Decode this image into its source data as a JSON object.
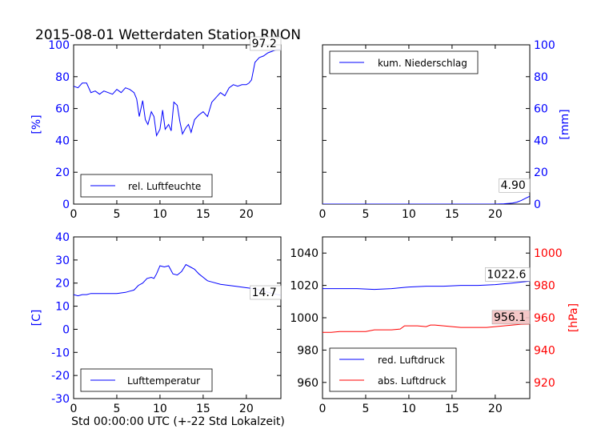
{
  "title": "2015-08-01 Wetterdaten Station RNON",
  "colors": {
    "blue": "#0000ff",
    "red": "#ff0000",
    "black": "#000000",
    "highlight": "#f4c2c2"
  },
  "chart_data": [
    {
      "id": "humidity",
      "type": "line",
      "ylabel": "[%]",
      "xlim": [
        0,
        24
      ],
      "ylim": [
        0,
        100
      ],
      "xticks": [
        0,
        5,
        10,
        15,
        20
      ],
      "yticks": [
        0,
        20,
        40,
        60,
        80,
        100
      ],
      "y_axis_side": "left",
      "legend_placement": "lower-left",
      "last_value_label": "97.2",
      "series": [
        {
          "name": "rel. Luftfeuchte",
          "color": "#0000ff",
          "x": [
            0,
            0.5,
            1,
            1.5,
            2,
            2.5,
            3,
            3.5,
            4,
            4.5,
            5,
            5.5,
            6,
            6.5,
            7,
            7.3,
            7.6,
            8,
            8.3,
            8.6,
            9,
            9.3,
            9.6,
            10,
            10.3,
            10.6,
            11,
            11.3,
            11.6,
            12,
            12.3,
            12.6,
            13,
            13.3,
            13.6,
            14,
            14.5,
            15,
            15.5,
            16,
            16.5,
            17,
            17.5,
            18,
            18.5,
            19,
            19.5,
            20,
            20.3,
            20.6,
            21,
            21.5,
            22,
            22.5,
            23,
            23.5,
            24
          ],
          "y": [
            74,
            73,
            76,
            76,
            70,
            71,
            69,
            71,
            70,
            69,
            72,
            70,
            73,
            72,
            70,
            66,
            55,
            65,
            53,
            50,
            58,
            55,
            43,
            47,
            59,
            47,
            50,
            46,
            64,
            62,
            52,
            44,
            48,
            50,
            45,
            53,
            56,
            58,
            55,
            64,
            67,
            70,
            68,
            73,
            75,
            74,
            75,
            75,
            76,
            78,
            89,
            92,
            93,
            95,
            96,
            97,
            97.2
          ]
        }
      ]
    },
    {
      "id": "precipitation",
      "type": "line",
      "ylabel": "[mm]",
      "xlim": [
        0,
        24
      ],
      "ylim": [
        0,
        100
      ],
      "xticks": [
        0,
        5,
        10,
        15,
        20
      ],
      "yticks": [
        0,
        20,
        40,
        60,
        80,
        100
      ],
      "y_axis_side": "right",
      "legend_placement": "upper-left",
      "last_value_label": "4.90",
      "series": [
        {
          "name": "kum. Niederschlag",
          "color": "#0000ff",
          "x": [
            0,
            20,
            21,
            22,
            22.5,
            23,
            23.5,
            24
          ],
          "y": [
            0,
            0,
            0.2,
            0.6,
            1.2,
            2.2,
            3.6,
            4.9
          ]
        }
      ]
    },
    {
      "id": "temperature",
      "type": "line",
      "ylabel": "[C]",
      "xlabel": "Std 00:00:00 UTC (+-22 Std Lokalzeit)",
      "xlim": [
        0,
        24
      ],
      "ylim": [
        -30,
        40
      ],
      "xticks": [
        0,
        5,
        10,
        15,
        20
      ],
      "yticks": [
        -30,
        -20,
        -10,
        0,
        10,
        20,
        30,
        40
      ],
      "y_axis_side": "left",
      "legend_placement": "lower-left",
      "last_value_label": "14.7",
      "series": [
        {
          "name": "Lufttemperatur",
          "color": "#0000ff",
          "x": [
            0,
            0.5,
            1,
            1.5,
            2,
            3,
            4,
            5,
            6,
            6.5,
            7,
            7.5,
            8,
            8.5,
            9,
            9.3,
            9.6,
            10,
            10.5,
            11,
            11.5,
            12,
            12.5,
            13,
            13.5,
            14,
            14.5,
            15,
            15.5,
            16,
            17,
            18,
            19,
            20,
            21,
            22,
            23,
            24
          ],
          "y": [
            15,
            14.5,
            15,
            15,
            15.5,
            15.5,
            15.5,
            15.5,
            16,
            16.5,
            17,
            19,
            20,
            22,
            22.5,
            22,
            24,
            27.5,
            27,
            27.5,
            24,
            23.5,
            25,
            28,
            27,
            26,
            24,
            22.5,
            21,
            20.5,
            19.5,
            19,
            18.5,
            18,
            17.5,
            16.5,
            15.5,
            14.7
          ]
        }
      ]
    },
    {
      "id": "pressure",
      "type": "line",
      "xlim": [
        0,
        24
      ],
      "ylim": [
        950,
        1050
      ],
      "xticks": [
        0,
        5,
        10,
        15,
        20
      ],
      "yticks": [
        960,
        980,
        1000,
        1020,
        1040
      ],
      "y_axis_side": "left",
      "y2label": "[hPa]",
      "y2lim": [
        910,
        1010
      ],
      "y2ticks": [
        920,
        940,
        960,
        980,
        1000
      ],
      "legend_placement": "lower-left",
      "series": [
        {
          "name": "red. Luftdruck",
          "color": "#0000ff",
          "axis": "left",
          "last_value_label": "1022.6",
          "x": [
            0,
            2,
            4,
            6,
            8,
            10,
            12,
            14,
            16,
            18,
            20,
            22,
            24
          ],
          "y": [
            1018,
            1018,
            1018,
            1017.5,
            1018,
            1019,
            1019.5,
            1019.5,
            1020,
            1020,
            1020.5,
            1021.5,
            1022.6
          ]
        },
        {
          "name": "abs. Luftdruck",
          "color": "#ff0000",
          "axis": "right",
          "last_value_label": "956.1",
          "x": [
            0,
            1,
            2,
            3,
            4,
            5,
            6,
            7,
            8,
            9,
            9.5,
            10,
            11,
            12,
            12.5,
            13,
            14,
            15,
            16,
            17,
            18,
            19,
            20,
            21,
            22,
            23,
            24
          ],
          "y": [
            951,
            951,
            951.5,
            951.5,
            951.5,
            951.5,
            952.5,
            952.5,
            952.5,
            953,
            955,
            955,
            955,
            954.5,
            955.5,
            955.5,
            955,
            954.5,
            954,
            954,
            954,
            954,
            954.5,
            955,
            955.5,
            956,
            956.1
          ]
        }
      ]
    }
  ]
}
